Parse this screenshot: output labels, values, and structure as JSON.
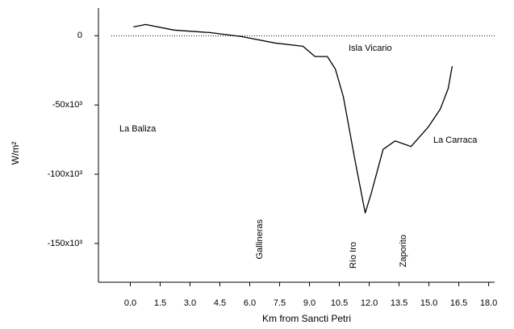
{
  "chart_data": {
    "type": "line",
    "x_label": "Km from Sancti Petri",
    "y_label": "W/m²",
    "x": [
      0.16,
      0.77,
      2.19,
      4.0,
      5.6,
      7.26,
      8.67,
      9.28,
      9.9,
      10.3,
      10.7,
      11.3,
      11.8,
      12.1,
      12.7,
      13.3,
      14.1,
      14.96,
      15.57,
      15.97,
      16.17
    ],
    "series": [
      {
        "name": "W/m²",
        "color": "#000000",
        "values": [
          6400,
          8100,
          4100,
          2300,
          -600,
          -5200,
          -7600,
          -15000,
          -15000,
          -24000,
          -44000,
          -91000,
          -128000,
          -114000,
          -82000,
          -76000,
          -80000,
          -66000,
          -53000,
          -38000,
          -22000
        ]
      }
    ],
    "xlim": [
      -1.6,
      18.3
    ],
    "ylim": [
      -178000,
      20000
    ],
    "xticks": [
      {
        "value": 0,
        "label": "0.0"
      },
      1.5,
      {
        "value": 3,
        "label": "3.0"
      },
      4.5,
      {
        "value": 6,
        "label": "6.0"
      },
      7.5,
      {
        "value": 9,
        "label": "9.0"
      },
      10.5,
      {
        "value": 12,
        "label": "12.0"
      },
      13.5,
      {
        "value": 15,
        "label": "15.0"
      },
      16.5,
      {
        "value": 18,
        "label": "18.0"
      }
    ],
    "yticks": [
      {
        "value": -150000,
        "label": "-150x10³"
      },
      {
        "value": -100000,
        "label": "-100x10³"
      },
      {
        "value": -50000,
        "label": "-50x10³"
      },
      0
    ],
    "zero_line": true,
    "annotations": [
      "Isla Vicario",
      "La Baliza",
      "La Carraca",
      "Gallineras",
      "Río Iro",
      "Zaporito"
    ]
  }
}
